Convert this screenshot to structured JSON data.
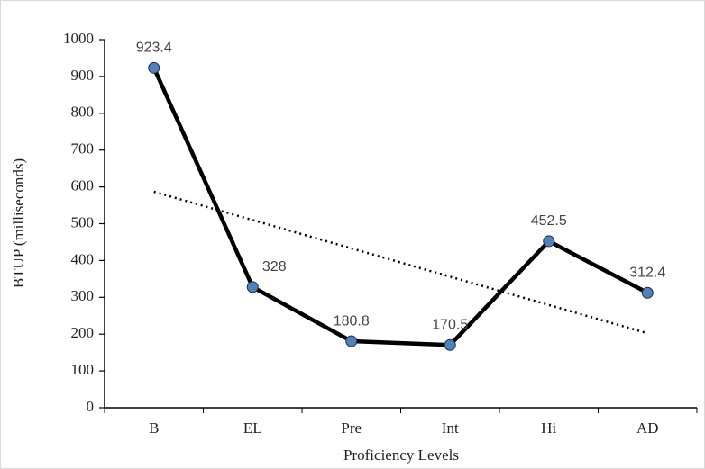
{
  "chart_data": {
    "type": "line",
    "x_label": "Proficiency Levels",
    "y_label": "BTUP (milliseconds)",
    "categories": [
      "B",
      "EL",
      "Pre",
      "Int",
      "Hi",
      "AD"
    ],
    "values": [
      923.4,
      328,
      180.8,
      170.5,
      452.5,
      312.4
    ],
    "color": "#000000",
    "marker_color": "#4f81bd",
    "trendline": "linear",
    "ylim": [
      0,
      1000
    ],
    "yticks": [
      0,
      100,
      200,
      300,
      400,
      500,
      600,
      700,
      800,
      900,
      1000
    ],
    "data_labels": true,
    "grid": false
  }
}
